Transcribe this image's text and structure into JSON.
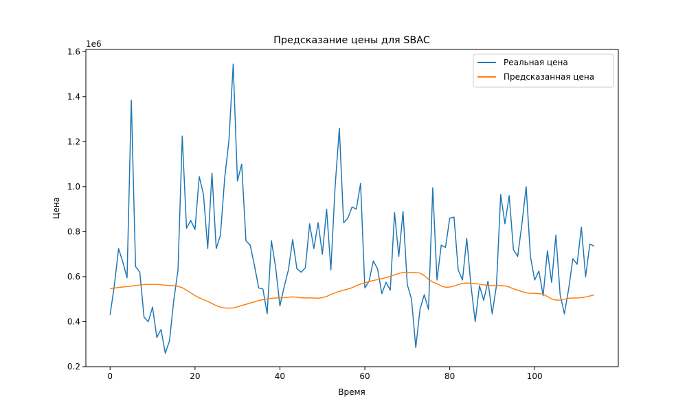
{
  "chart_data": {
    "type": "line",
    "title": "Предсказание цены для SBAC",
    "xlabel": "Время",
    "ylabel": "Цена",
    "y_offset_label": "1e6",
    "xlim": [
      -5.7,
      119.7
    ],
    "ylim": [
      200000,
      1610000
    ],
    "x_ticks": [
      0,
      20,
      40,
      60,
      80,
      100
    ],
    "x_tick_labels": [
      "0",
      "20",
      "40",
      "60",
      "80",
      "100"
    ],
    "y_ticks": [
      200000,
      400000,
      600000,
      800000,
      1000000,
      1200000,
      1400000,
      1600000
    ],
    "y_tick_labels": [
      "0.2",
      "0.4",
      "0.6",
      "0.8",
      "1.0",
      "1.2",
      "1.4",
      "1.6"
    ],
    "grid": false,
    "legend_position": "top-right",
    "series": [
      {
        "name": "Реальная цена",
        "color": "#1f77b4",
        "values": [
          430000,
          560000,
          725000,
          665000,
          595000,
          1385000,
          645000,
          620000,
          420000,
          400000,
          465000,
          330000,
          365000,
          260000,
          315000,
          495000,
          630000,
          1225000,
          815000,
          850000,
          810000,
          1045000,
          965000,
          725000,
          1060000,
          725000,
          785000,
          1040000,
          1205000,
          1545000,
          1025000,
          1100000,
          760000,
          740000,
          650000,
          550000,
          545000,
          435000,
          760000,
          640000,
          470000,
          555000,
          630000,
          765000,
          635000,
          620000,
          640000,
          835000,
          725000,
          840000,
          700000,
          900000,
          630000,
          1000000,
          1260000,
          840000,
          860000,
          910000,
          900000,
          1015000,
          550000,
          580000,
          670000,
          635000,
          525000,
          575000,
          540000,
          885000,
          690000,
          890000,
          565000,
          500000,
          285000,
          455000,
          520000,
          455000,
          995000,
          585000,
          740000,
          730000,
          860000,
          865000,
          630000,
          585000,
          770000,
          560000,
          400000,
          560000,
          495000,
          580000,
          435000,
          560000,
          965000,
          835000,
          960000,
          720000,
          690000,
          835000,
          1000000,
          690000,
          585000,
          625000,
          515000,
          715000,
          575000,
          785000,
          520000,
          435000,
          545000,
          680000,
          655000,
          820000,
          600000,
          745000,
          735000
        ]
      },
      {
        "name": "Предсказанная цена",
        "color": "#ff7f0e",
        "values": [
          547000,
          549000,
          552000,
          554000,
          556000,
          558000,
          561000,
          563000,
          565000,
          566000,
          566000,
          566000,
          564000,
          562000,
          561000,
          560000,
          557000,
          551000,
          540000,
          528000,
          516000,
          506000,
          498000,
          490000,
          481000,
          471000,
          465000,
          461000,
          460000,
          461000,
          466000,
          472000,
          477000,
          483000,
          488000,
          494000,
          498000,
          501000,
          504000,
          505000,
          506000,
          507000,
          509000,
          510000,
          509000,
          506000,
          505000,
          506000,
          505000,
          504000,
          507000,
          512000,
          521000,
          528000,
          535000,
          540000,
          545000,
          551000,
          560000,
          567000,
          573000,
          578000,
          583000,
          587000,
          591000,
          596000,
          601000,
          608000,
          614000,
          619000,
          620000,
          618000,
          618000,
          616000,
          605000,
          588000,
          576000,
          569000,
          559000,
          553000,
          554000,
          558000,
          565000,
          570000,
          572000,
          571000,
          569000,
          567000,
          564000,
          561000,
          560000,
          560000,
          561000,
          559000,
          554000,
          546000,
          540000,
          534000,
          528000,
          526000,
          526000,
          525000,
          522000,
          512000,
          501000,
          496000,
          496000,
          500000,
          504000,
          505000,
          505000,
          507000,
          510000,
          514000,
          519000
        ]
      }
    ]
  }
}
